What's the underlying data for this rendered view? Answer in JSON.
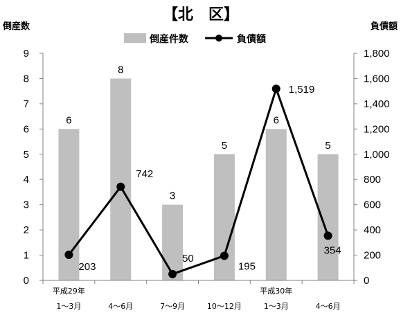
{
  "chart_data": {
    "type": "bar+line",
    "title": "【北　区】",
    "ylabel_left": "倒産数",
    "ylabel_right": "負債額",
    "categories": [
      [
        "平成29年",
        "1～3月"
      ],
      [
        "",
        "4～6月"
      ],
      [
        "",
        "7～9月"
      ],
      [
        "",
        "10～12月"
      ],
      [
        "平成30年",
        "1～3月"
      ],
      [
        "",
        "4～6月"
      ]
    ],
    "series": [
      {
        "name": "倒産件数",
        "type": "bar",
        "axis": "left",
        "color": "#bfbfbf",
        "values": [
          6,
          8,
          3,
          5,
          6,
          5
        ],
        "labels": [
          "6",
          "8",
          "3",
          "5",
          "6",
          "5"
        ]
      },
      {
        "name": "負債額",
        "type": "line",
        "axis": "right",
        "color": "#000000",
        "values": [
          203,
          742,
          50,
          195,
          1519,
          354
        ],
        "labels": [
          "203",
          "742",
          "50",
          "195",
          "1,519",
          "354"
        ]
      }
    ],
    "ylim_left": [
      0,
      9
    ],
    "yticks_left": [
      "0",
      "1",
      "2",
      "3",
      "4",
      "5",
      "6",
      "7",
      "8",
      "9"
    ],
    "ylim_right": [
      0,
      1800
    ],
    "yticks_right": [
      "0",
      "200",
      "400",
      "600",
      "800",
      "1,000",
      "1,200",
      "1,400",
      "1,600",
      "1,800"
    ],
    "grid": false,
    "legend": "top"
  }
}
